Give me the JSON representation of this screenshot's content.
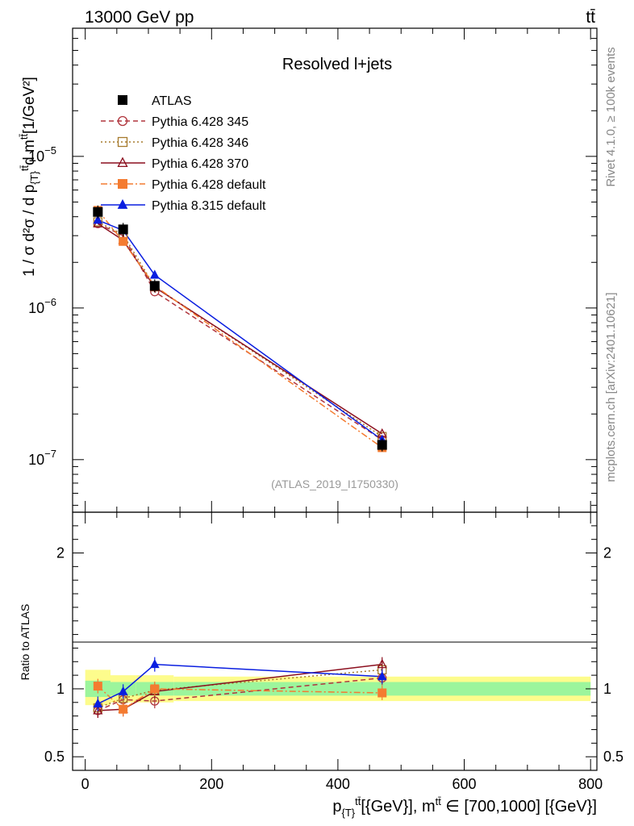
{
  "header": {
    "energy_label": "13000 GeV pp",
    "process_label": "tt̄"
  },
  "side_texts": {
    "rivet": "Rivet 4.1.0, ≥ 100k events",
    "mcplots": "mcplots.cern.ch [arXiv:2401.10621]"
  },
  "watermark": "(ATLAS_2019_I1750330)",
  "chart_data": [
    {
      "type": "line",
      "title": "Resolved l+jets",
      "ylabel": "1 / σ d²σ / d p_{T}^{tt̄} d m^{tt̄} [1/GeV²]",
      "yscale": "log",
      "ylim": [
        4.5e-08,
        7e-05
      ],
      "xlim": [
        -20,
        810
      ],
      "ytick_labels": [
        {
          "base": "10",
          "exp": "−7",
          "value": 1e-07
        },
        {
          "base": "10",
          "exp": "−6",
          "value": 1e-06
        },
        {
          "base": "10",
          "exp": "−5",
          "value": 1e-05
        }
      ],
      "x": [
        20,
        60,
        110,
        470
      ],
      "series": [
        {
          "name": "ATLAS",
          "color": "#000000",
          "marker": "square-filled",
          "values": [
            4.3e-06,
            3.3e-06,
            1.4e-06,
            1.25e-07
          ]
        },
        {
          "name": "Pythia 6.428 345",
          "color": "#b0353d",
          "marker": "circle-open",
          "dash": "dashed",
          "values": [
            3.6e-06,
            3e-06,
            1.28e-06,
            1.35e-07
          ]
        },
        {
          "name": "Pythia 6.428 346",
          "color": "#a67a2c",
          "marker": "square-open",
          "dash": "dotted",
          "values": [
            3.7e-06,
            3.05e-06,
            1.38e-06,
            1.42e-07
          ]
        },
        {
          "name": "Pythia 6.428 370",
          "color": "#8c0f1f",
          "marker": "triangle-open",
          "dash": "solid",
          "values": [
            3.6e-06,
            2.8e-06,
            1.37e-06,
            1.48e-07
          ]
        },
        {
          "name": "Pythia 6.428 default",
          "color": "#f47b30",
          "marker": "square-filled",
          "dash": "dashdot",
          "values": [
            4.4e-06,
            2.75e-06,
            1.4e-06,
            1.2e-07
          ]
        },
        {
          "name": "Pythia 8.315 default",
          "color": "#0a1ee0",
          "marker": "triangle-filled",
          "dash": "solid",
          "values": [
            3.8e-06,
            3.25e-06,
            1.65e-06,
            1.35e-07
          ]
        }
      ]
    },
    {
      "type": "line",
      "ylabel": "Ratio to ATLAS",
      "xlabel": "p_{T}^{tt̄} [{GeV}], m^{tt̄} ∈ [700,1000] [{GeV}]",
      "ylim": [
        0.4,
        2.3
      ],
      "xlim": [
        -20,
        810
      ],
      "ytick_labels": [
        "0.5",
        "1",
        "2"
      ],
      "xtick_labels": [
        "0",
        "200",
        "400",
        "600",
        "800"
      ],
      "bands": [
        {
          "x0": 0,
          "x1": 40,
          "inner": [
            0.94,
            1.06
          ],
          "outer": [
            0.88,
            1.14
          ]
        },
        {
          "x0": 40,
          "x1": 80,
          "inner": [
            0.95,
            1.05
          ],
          "outer": [
            0.9,
            1.1
          ]
        },
        {
          "x0": 80,
          "x1": 140,
          "inner": [
            0.95,
            1.05
          ],
          "outer": [
            0.9,
            1.1
          ]
        },
        {
          "x0": 140,
          "x1": 800,
          "inner": [
            0.95,
            1.05
          ],
          "outer": [
            0.91,
            1.09
          ]
        }
      ],
      "x": [
        20,
        60,
        110,
        470
      ],
      "series": [
        {
          "name": "Pythia 6.428 345",
          "values": [
            0.84,
            0.92,
            0.91,
            1.08
          ]
        },
        {
          "name": "Pythia 6.428 346",
          "values": [
            0.86,
            0.93,
            0.99,
            1.14
          ]
        },
        {
          "name": "Pythia 6.428 370",
          "values": [
            0.84,
            0.85,
            0.98,
            1.18
          ]
        },
        {
          "name": "Pythia 6.428 default",
          "values": [
            1.02,
            0.85,
            1.0,
            0.97
          ]
        },
        {
          "name": "Pythia 8.315 default",
          "values": [
            0.89,
            0.98,
            1.18,
            1.09
          ]
        }
      ]
    }
  ]
}
